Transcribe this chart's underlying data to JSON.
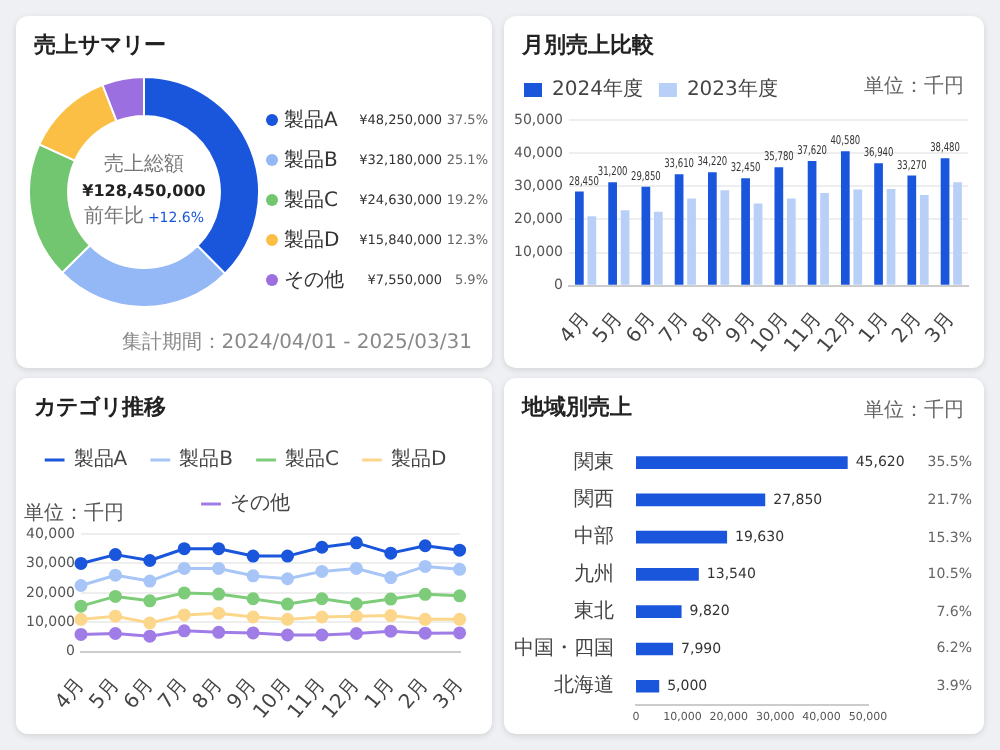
{
  "chart_data": [
    {
      "type": "donut",
      "title": "売上サマリー",
      "categories": [
        "製品A",
        "製品B",
        "製品C",
        "製品D",
        "その他"
      ],
      "values": [
        48250000,
        32180000,
        24630000,
        15840000,
        7550000
      ],
      "value_labels": [
        "¥48,250,000",
        "¥32,180,000",
        "¥24,630,000",
        "¥15,840,000",
        "¥7,550,000"
      ],
      "colors": [
        "#1a56db",
        "#93b8f5",
        "#72c66f",
        "#fbbf45",
        "#9b6fe0"
      ],
      "legend": "right",
      "annotations": [
        "売上総額",
        "¥128,450,000",
        "前年比",
        "+12.6%",
        "集計期間：2024/04/01 - 2025/03/31",
        "37.5%",
        "25.1%",
        "19.2%",
        "12.3%",
        "5.9%"
      ]
    },
    {
      "type": "bar",
      "title": "月別売上比較",
      "categories": [
        "4月",
        "5月",
        "6月",
        "7月",
        "8月",
        "9月",
        "10月",
        "11月",
        "12月",
        "1月",
        "2月",
        "3月"
      ],
      "series": [
        {
          "name": "2024年度",
          "color": "#1a56db",
          "values": [
            28450,
            31200,
            29850,
            33610,
            34220,
            32450,
            35780,
            37620,
            40580,
            36940,
            33270,
            38480
          ],
          "value_labels": [
            "28,450",
            "31,200",
            "29,850",
            "33,610",
            "34,220",
            "32,450",
            "35,780",
            "37,620",
            "40,580",
            "36,940",
            "33,270",
            "38,480"
          ]
        },
        {
          "name": "2023年度",
          "color": "#b8d0f7",
          "values": [
            21000,
            22800,
            22300,
            26300,
            28800,
            24800,
            26300,
            28000,
            29000,
            29200,
            27400,
            31200
          ]
        }
      ],
      "ylim": [
        0,
        50000
      ],
      "yticks": [
        {
          "value": 0,
          "label": "0"
        },
        {
          "value": 10000,
          "label": "10,000"
        },
        {
          "value": 20000,
          "label": "20,000"
        },
        {
          "value": 30000,
          "label": "30,000"
        },
        {
          "value": 40000,
          "label": "40,000"
        },
        {
          "value": 50000,
          "label": "50,000"
        }
      ],
      "grid": "y",
      "legend": "top left",
      "annotations": [
        "単位：千円"
      ]
    },
    {
      "type": "line",
      "title": "カテゴリ推移",
      "ylabel": "単位：千円",
      "categories": [
        "4月",
        "5月",
        "6月",
        "7月",
        "8月",
        "9月",
        "10月",
        "11月",
        "12月",
        "1月",
        "2月",
        "3月"
      ],
      "series": [
        {
          "name": "製品A",
          "color": "#1a56db",
          "values": [
            30000,
            33000,
            31000,
            35000,
            35000,
            32500,
            32500,
            35500,
            37000,
            33500,
            36000,
            34500
          ]
        },
        {
          "name": "製品B",
          "color": "#a7c5f7",
          "values": [
            22500,
            26000,
            24000,
            28300,
            28300,
            25800,
            24800,
            27300,
            28300,
            25200,
            29000,
            28000
          ]
        },
        {
          "name": "製品C",
          "color": "#7dcc7a",
          "values": [
            15500,
            18800,
            17300,
            20000,
            19600,
            18000,
            16200,
            18000,
            16300,
            17900,
            19500,
            19000
          ]
        },
        {
          "name": "製品D",
          "color": "#fcd68a",
          "values": [
            11000,
            12100,
            9800,
            12500,
            13100,
            11800,
            11000,
            11800,
            12100,
            12300,
            11000,
            11000
          ]
        },
        {
          "name": "その他",
          "color": "#a07ce6",
          "values": [
            5900,
            6200,
            5300,
            7100,
            6600,
            6400,
            5700,
            5700,
            6200,
            7000,
            6300,
            6400
          ]
        }
      ],
      "ylim": [
        0,
        40000
      ],
      "yticks": [
        {
          "value": 0,
          "label": "0"
        },
        {
          "value": 10000,
          "label": "10,000"
        },
        {
          "value": 20000,
          "label": "20,000"
        },
        {
          "value": 30000,
          "label": "30,000"
        },
        {
          "value": 40000,
          "label": "40,000"
        }
      ],
      "grid": "y",
      "legend": "top",
      "marker": "circle"
    },
    {
      "type": "bar",
      "orientation": "horizontal",
      "title": "地域別売上",
      "categories": [
        "関東",
        "関西",
        "中部",
        "九州",
        "東北",
        "中国・四国",
        "北海道"
      ],
      "values": [
        45620,
        27850,
        19630,
        13540,
        9820,
        7990,
        5000
      ],
      "color": "#1a56db",
      "value_labels": [
        "45,620",
        "27,850",
        "19,630",
        "13,540",
        "9,820",
        "7,990",
        "5,000"
      ],
      "xlim": [
        0,
        50000
      ],
      "xticks": [
        {
          "value": 0,
          "label": "0"
        },
        {
          "value": 10000,
          "label": "10,000"
        },
        {
          "value": 20000,
          "label": "20,000"
        },
        {
          "value": 30000,
          "label": "30,000"
        },
        {
          "value": 40000,
          "label": "40,000"
        },
        {
          "value": 50000,
          "label": "50,000"
        }
      ],
      "grid": false,
      "annotations": [
        "単位：千円",
        "35.5%",
        "21.7%",
        "15.3%",
        "10.5%",
        "7.6%",
        "6.2%",
        "3.9%"
      ]
    }
  ]
}
